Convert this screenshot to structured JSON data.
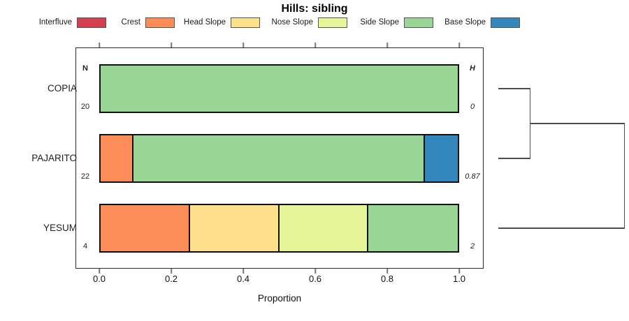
{
  "chart_data": {
    "type": "bar",
    "variant": "horizontal-stacked-proportion",
    "title": "Hills: sibling",
    "xlabel": "Proportion",
    "xlim": [
      0,
      1
    ],
    "x_ticks": [
      "0.0",
      "0.2",
      "0.4",
      "0.6",
      "0.8",
      "1.0"
    ],
    "legend": [
      {
        "label": "Interfluve",
        "color": "#D53E4F"
      },
      {
        "label": "Crest",
        "color": "#FC8D59"
      },
      {
        "label": "Head Slope",
        "color": "#FEE08B"
      },
      {
        "label": "Nose Slope",
        "color": "#E6F598"
      },
      {
        "label": "Side Slope",
        "color": "#99D594"
      },
      {
        "label": "Base Slope",
        "color": "#3288BD"
      }
    ],
    "gutter_headers": {
      "left": "N",
      "right": "H"
    },
    "rows": [
      {
        "label": "COPIA",
        "n": "20",
        "h": "0",
        "segments": [
          {
            "category": "Side Slope",
            "value": 1.0
          }
        ]
      },
      {
        "label": "PAJARITO",
        "n": "22",
        "h": "0.87",
        "segments": [
          {
            "category": "Crest",
            "value": 0.091
          },
          {
            "category": "Side Slope",
            "value": 0.818
          },
          {
            "category": "Base Slope",
            "value": 0.091
          }
        ]
      },
      {
        "label": "YESUM",
        "n": "4",
        "h": "2",
        "segments": [
          {
            "category": "Crest",
            "value": 0.25
          },
          {
            "category": "Head Slope",
            "value": 0.25
          },
          {
            "category": "Nose Slope",
            "value": 0.25
          },
          {
            "category": "Side Slope",
            "value": 0.25
          }
        ]
      }
    ],
    "dendrogram": {
      "leaves": [
        "COPIA",
        "PAJARITO",
        "YESUM"
      ],
      "merges": [
        {
          "members": [
            "COPIA",
            "PAJARITO"
          ]
        },
        {
          "members": [
            "COPIA+PAJARITO",
            "YESUM"
          ]
        }
      ],
      "position": "right"
    }
  }
}
